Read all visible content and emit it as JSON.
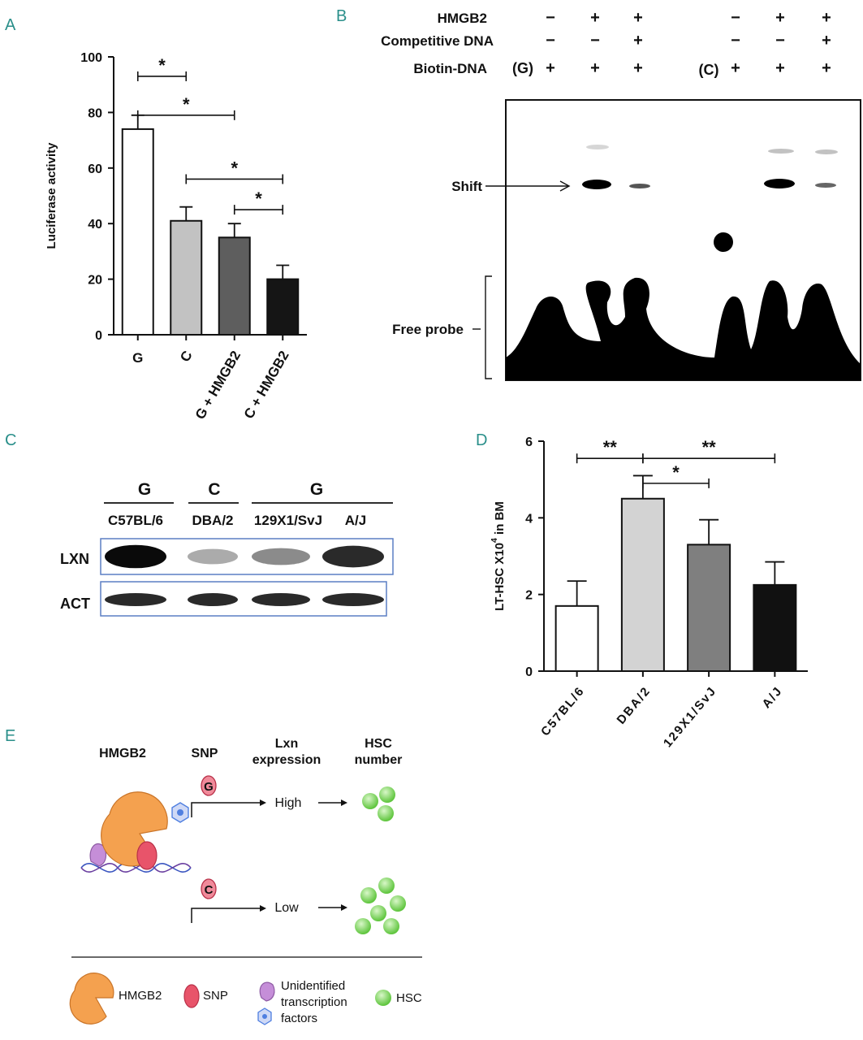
{
  "panels": {
    "A": "A",
    "B": "B",
    "C": "C",
    "D": "D",
    "E": "E"
  },
  "chart_data": [
    {
      "type": "bar",
      "panel": "A",
      "categories": [
        "G",
        "C",
        "G + HMGB2",
        "C + HMGB2"
      ],
      "values": [
        74,
        41,
        35,
        20
      ],
      "errors": [
        5,
        5,
        5,
        5
      ],
      "colors": [
        "#ffffff",
        "#c2c2c2",
        "#5e5e5e",
        "#151515"
      ],
      "ylabel": "Luciferase activity",
      "ylim": [
        0,
        100
      ],
      "yticks": [
        "0",
        "20",
        "40",
        "60",
        "80",
        "100"
      ],
      "grid": false,
      "significance": [
        {
          "from": 0,
          "to": 1,
          "y": 93,
          "label": "*"
        },
        {
          "from": 0,
          "to": 2,
          "y": 79,
          "label": "*"
        },
        {
          "from": 1,
          "to": 3,
          "y": 56,
          "label": "*"
        },
        {
          "from": 2,
          "to": 3,
          "y": 45,
          "label": "*"
        }
      ]
    },
    {
      "type": "bar",
      "panel": "D",
      "categories": [
        "C57BL/6",
        "DBA/2",
        "129X1/SvJ",
        "A/J"
      ],
      "values": [
        1.7,
        4.5,
        3.3,
        2.25
      ],
      "errors": [
        0.65,
        0.6,
        0.65,
        0.6
      ],
      "colors": [
        "#ffffff",
        "#d3d3d3",
        "#7f7f7f",
        "#111111"
      ],
      "ylabel": "LT-HSC X10",
      "ylabel_sup": "4",
      "ylabel_tail": " in BM",
      "ylim": [
        0,
        6
      ],
      "yticks": [
        "0",
        "2",
        "4",
        "6"
      ],
      "grid": false,
      "significance": [
        {
          "from": 0,
          "to": 1,
          "y": 5.55,
          "label": "**"
        },
        {
          "from": 1,
          "to": 3,
          "y": 5.55,
          "label": "**"
        },
        {
          "from": 1,
          "to": 2,
          "y": 4.9,
          "label": "*"
        }
      ]
    }
  ],
  "gel": {
    "rows": [
      {
        "label": "HMGB2",
        "values": [
          "−",
          "+",
          "+",
          "−",
          "+",
          "+"
        ]
      },
      {
        "label": "Competitive DNA",
        "values": [
          "−",
          "−",
          "+",
          "−",
          "−",
          "+"
        ]
      },
      {
        "label": "Biotin-DNA",
        "values": [
          "+",
          "+",
          "+",
          "+",
          "+",
          "+"
        ]
      }
    ],
    "group_g": "(G)",
    "group_c": "(C)",
    "shift_label": "Shift",
    "free_probe_label": "Free probe"
  },
  "western": {
    "groups": [
      "G",
      "C",
      "G"
    ],
    "strains": [
      "C57BL/6",
      "DBA/2",
      "129X1/SvJ",
      "A/J"
    ],
    "rows": [
      "LXN",
      "ACT"
    ],
    "lxn_intensity": [
      1.0,
      0.25,
      0.4,
      0.85
    ],
    "act_intensity": [
      0.85,
      0.85,
      0.85,
      0.85
    ]
  },
  "model": {
    "col_hmgb2": "HMGB2",
    "col_snp": "SNP",
    "col_lxn": [
      "Lxn",
      "expression"
    ],
    "col_hsc": [
      "HSC",
      "number"
    ],
    "snp_g": "G",
    "snp_c": "C",
    "high": "High",
    "low": "Low",
    "legend": {
      "hmgb2": "HMGB2",
      "snp": "SNP",
      "tf": [
        "Unidentified",
        "transcription",
        "factors"
      ],
      "hsc": "HSC"
    },
    "colors": {
      "hmgb2": "#f4a14f",
      "snp": "#e8546a",
      "tf_purple": "#c58ed8",
      "tf_blue": "#4f7fe0",
      "hsc": "#7ed957"
    }
  }
}
